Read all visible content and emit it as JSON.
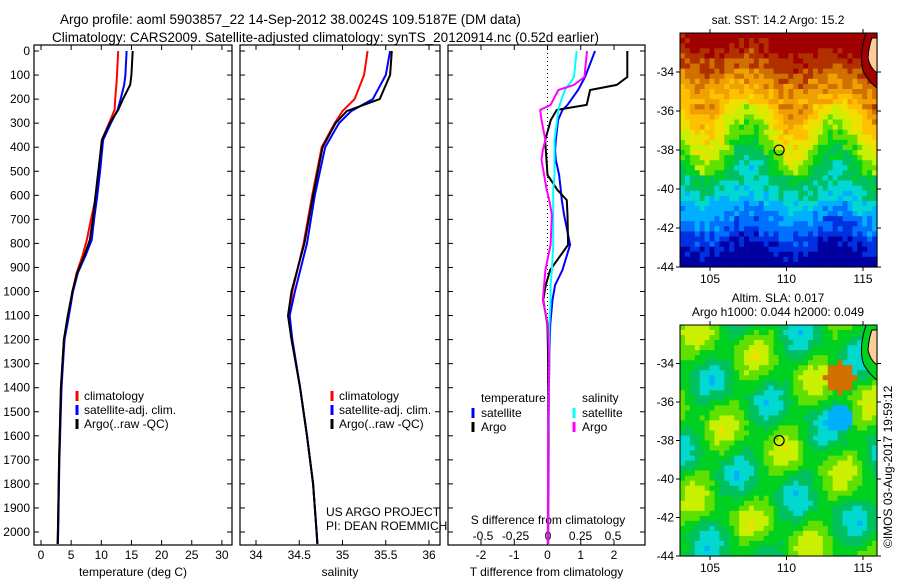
{
  "header": {
    "line1": "Argo profile: aoml 5903857_22 14-Sep-2012 38.0024S 109.5187E (DM data)",
    "line2": "Climatology: CARS2009. Satellite-adjusted climatology: synTS_20120914.nc (0.52d earlier)"
  },
  "depth_ticks": [
    "0",
    "100",
    "200",
    "300",
    "400",
    "500",
    "600",
    "700",
    "800",
    "900",
    "1000",
    "1100",
    "1200",
    "1300",
    "1400",
    "1500",
    "1600",
    "1700",
    "1800",
    "1900",
    "2000"
  ],
  "colors": {
    "climatology": "#ff0000",
    "satellite": "#0000ff",
    "argo": "#000000",
    "sal_satellite": "#00ffff",
    "sal_argo": "#ff00ff",
    "land": "#ffcc99"
  },
  "credits": {
    "project": "US ARGO PROJECT",
    "pi": "PI: DEAN ROEMMICH",
    "copyright": "©IMOS 03-Aug-2017 19:59:12"
  },
  "chart_data": [
    {
      "type": "line",
      "id": "temperature",
      "xlabel": "temperature (deg C)",
      "ylabel": "depth",
      "xticks": [
        "0",
        "5",
        "10",
        "15",
        "20",
        "25",
        "30"
      ],
      "xtick_values": [
        0,
        5,
        10,
        15,
        20,
        25,
        30
      ],
      "xlim": [
        -1.2,
        31.7
      ],
      "ylim": [
        2055,
        0
      ],
      "legend": {
        "placement": "lower-middle",
        "entries": [
          "climatology",
          "satellite-adj. clim.",
          "Argo(..raw -QC)"
        ]
      },
      "depth": [
        0,
        100,
        140,
        200,
        245,
        300,
        370,
        500,
        607,
        700,
        786,
        850,
        923,
        1000,
        1106,
        1200,
        1400,
        1700,
        2000,
        2050
      ],
      "series": [
        {
          "name": "climatology",
          "color": "#ff0000",
          "values": [
            12.8,
            12.6,
            12.5,
            12.3,
            12.2,
            11.3,
            10.1,
            9.6,
            9.1,
            8.3,
            7.6,
            6.9,
            5.9,
            5.2,
            4.5,
            3.8,
            3.3,
            3.0,
            2.8,
            2.75
          ]
        },
        {
          "name": "satellite-adj. clim.",
          "color": "#0000ff",
          "values": [
            14.2,
            14.0,
            13.8,
            13.2,
            12.7,
            11.6,
            10.3,
            9.8,
            9.3,
            8.8,
            8.4,
            7.4,
            6.1,
            5.3,
            4.6,
            3.9,
            3.4,
            3.05,
            2.85,
            2.8
          ]
        },
        {
          "name": "Argo(..raw -QC)",
          "color": "#000000",
          "values": [
            15.2,
            15.0,
            14.8,
            13.6,
            12.8,
            11.4,
            10.1,
            9.5,
            9.0,
            8.6,
            8.1,
            7.2,
            6.0,
            5.2,
            4.4,
            3.8,
            3.3,
            3.0,
            2.8,
            2.75
          ]
        }
      ]
    },
    {
      "type": "line",
      "id": "salinity",
      "xlabel": "salinity",
      "ylabel": "depth",
      "xticks": [
        "34",
        "34.5",
        "35",
        "35.5",
        "36"
      ],
      "xtick_values": [
        34,
        34.5,
        35,
        35.5,
        36
      ],
      "xlim": [
        33.8,
        36.13
      ],
      "ylim": [
        2055,
        0
      ],
      "legend": {
        "placement": "lower-middle",
        "entries": [
          "climatology",
          "satellite-adj. clim.",
          "Argo(..raw -QC)"
        ]
      },
      "depth": [
        0,
        100,
        200,
        250,
        300,
        400,
        600,
        800,
        1000,
        1100,
        1200,
        1400,
        1600,
        1800,
        2000,
        2050
      ],
      "series": [
        {
          "name": "climatology",
          "color": "#ff0000",
          "values": [
            35.29,
            35.25,
            35.14,
            35.0,
            34.91,
            34.76,
            34.65,
            34.55,
            34.42,
            34.38,
            34.42,
            34.51,
            34.59,
            34.66,
            34.7,
            34.71
          ]
        },
        {
          "name": "satellite-adj. clim.",
          "color": "#0000ff",
          "values": [
            35.55,
            35.5,
            35.35,
            35.1,
            34.96,
            34.8,
            34.68,
            34.59,
            34.45,
            34.39,
            34.42,
            34.51,
            34.59,
            34.66,
            34.7,
            34.71
          ]
        },
        {
          "name": "Argo(..raw -QC)",
          "color": "#000000",
          "values": [
            35.57,
            35.55,
            35.43,
            35.05,
            34.92,
            34.77,
            34.66,
            34.56,
            34.41,
            34.37,
            34.41,
            34.51,
            34.59,
            34.66,
            34.7,
            34.71
          ]
        }
      ]
    },
    {
      "type": "line",
      "id": "differences",
      "xlabel": "T difference from climatology",
      "x2label": "S difference from climatology",
      "xticks": [
        "-2",
        "-1",
        "0",
        "1",
        "2"
      ],
      "xtick_values": [
        -2,
        -1,
        0,
        1,
        2
      ],
      "x2ticks": [
        "-0.5",
        "-0.25",
        "0",
        "0.25",
        "0.5"
      ],
      "x2tick_values": [
        -0.5,
        -0.25,
        0,
        0.25,
        0.5
      ],
      "xlim": [
        -3,
        3
      ],
      "ylim": [
        2055,
        0
      ],
      "legend": {
        "placement": "lower-middle",
        "headers": [
          "temperature",
          "salinity"
        ],
        "entries": [
          "satellite",
          "Argo",
          "satellite",
          "Argo"
        ]
      },
      "depth": [
        0,
        108,
        141,
        162,
        224,
        245,
        287,
        370,
        412,
        453,
        515,
        578,
        620,
        682,
        806,
        910,
        973,
        1035,
        1140,
        1300,
        1600,
        2050
      ],
      "series": [
        {
          "name": "temperature satellite",
          "axis": "T",
          "color": "#0000ff",
          "values": [
            1.43,
            1.13,
            1.0,
            0.92,
            0.6,
            0.45,
            0.32,
            0.25,
            0.23,
            0.25,
            0.35,
            0.4,
            0.43,
            0.5,
            0.68,
            0.45,
            0.23,
            0.15,
            0.08,
            0.05,
            0.03,
            0.02
          ]
        },
        {
          "name": "temperature Argo",
          "axis": "T",
          "color": "#000000",
          "values": [
            2.4,
            2.4,
            2.08,
            1.28,
            1.18,
            0.28,
            0.1,
            -0.07,
            -0.05,
            -0.03,
            0.0,
            0.3,
            0.58,
            0.6,
            0.62,
            0.08,
            -0.05,
            -0.13,
            0.0,
            0.02,
            0.02,
            0.01
          ]
        },
        {
          "name": "salinity satellite",
          "axis": "S",
          "color": "#00ffff",
          "values": [
            0.22,
            0.2,
            0.16,
            0.13,
            0.09,
            0.08,
            0.07,
            0.05,
            0.05,
            0.05,
            0.05,
            0.04,
            0.04,
            0.04,
            0.04,
            0.03,
            0.02,
            0.02,
            0.01,
            0.01,
            0.0,
            0.0
          ]
        },
        {
          "name": "salinity Argo",
          "axis": "S",
          "color": "#ff00ff",
          "values": [
            0.3,
            0.28,
            0.2,
            0.08,
            0.02,
            -0.06,
            -0.05,
            -0.02,
            -0.04,
            -0.05,
            -0.03,
            -0.01,
            0.01,
            0.03,
            0.02,
            -0.02,
            -0.03,
            -0.04,
            0.0,
            0.01,
            0.0,
            0.0
          ]
        }
      ]
    },
    {
      "type": "heatmap",
      "id": "sst_map",
      "title": "sat. SST: 14.2 Argo: 15.2",
      "xticks": [
        "105",
        "110",
        "115"
      ],
      "xtick_values": [
        105,
        110,
        115
      ],
      "yticks": [
        "-34",
        "-36",
        "-38",
        "-40",
        "-42",
        "-44"
      ],
      "ytick_values": [
        -34,
        -36,
        -38,
        -40,
        -42,
        -44
      ],
      "xlim": [
        103,
        116
      ],
      "ylim": [
        -44,
        -32
      ],
      "float_position": {
        "lon": 109.5187,
        "lat": -38.0024
      }
    },
    {
      "type": "heatmap",
      "id": "sla_map",
      "title": "Altim. SLA: 0.017",
      "subtitle": "Argo h1000: 0.044 h2000: 0.049",
      "xticks": [
        "105",
        "110",
        "115"
      ],
      "xtick_values": [
        105,
        110,
        115
      ],
      "yticks": [
        "-34",
        "-36",
        "-38",
        "-40",
        "-42",
        "-44"
      ],
      "ytick_values": [
        -34,
        -36,
        -38,
        -40,
        -42,
        -44
      ],
      "xlim": [
        103,
        116
      ],
      "ylim": [
        -44,
        -32
      ],
      "float_position": {
        "lon": 109.5187,
        "lat": -38.0024
      }
    }
  ]
}
